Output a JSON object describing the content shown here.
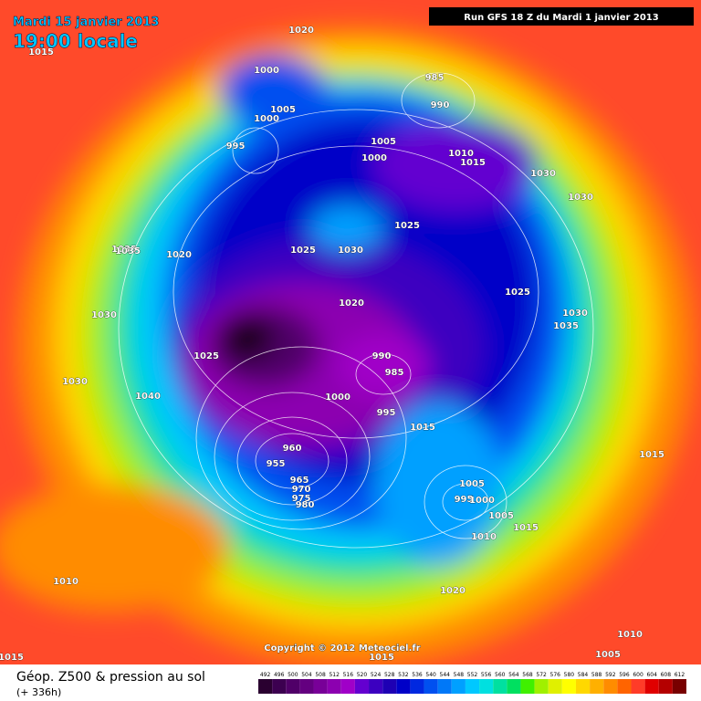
{
  "header": {
    "date": "Mardi 15 janvier 2013",
    "time": "19:00 locale",
    "run": "Run GFS 18 Z du Mardi 1 janvier 2013"
  },
  "copyright": "Copyright © 2012 Meteociel.fr",
  "footer": {
    "title": "Géop. Z500 & pression au sol",
    "subtitle": "(+ 336h)"
  },
  "colorbar": {
    "ticks": [
      492,
      496,
      500,
      504,
      508,
      512,
      516,
      520,
      524,
      528,
      532,
      536,
      540,
      544,
      548,
      552,
      556,
      560,
      564,
      568,
      572,
      576,
      580,
      584,
      588,
      592,
      596,
      600,
      604,
      608,
      612
    ],
    "colors": [
      "#2a0030",
      "#3c0050",
      "#500068",
      "#640080",
      "#780098",
      "#8c00b0",
      "#a000c8",
      "#6400d0",
      "#3c00c0",
      "#1e00b4",
      "#0000c8",
      "#0028e0",
      "#0050f0",
      "#0078f8",
      "#00a0ff",
      "#00c8ff",
      "#00e0e0",
      "#00e0a0",
      "#00e060",
      "#40f000",
      "#a0f000",
      "#e0f000",
      "#ffff00",
      "#ffd800",
      "#ffb000",
      "#ff8c00",
      "#ff6400",
      "#ff3c28",
      "#e00000",
      "#b40000",
      "#780000"
    ]
  },
  "isobar_labels": [
    1020,
    1015,
    1000,
    1005,
    1000,
    995,
    1005,
    1000,
    1010,
    1015,
    1030,
    1030,
    1035,
    1020,
    1025,
    1030,
    1025,
    1020,
    1025,
    990,
    985,
    1000,
    995,
    960,
    955,
    965,
    970,
    975,
    980,
    1040,
    1030,
    1035,
    1030,
    1015,
    1005,
    995,
    1000,
    1010,
    1020,
    1015,
    1010,
    1010,
    1005,
    1015,
    985,
    990,
    1025,
    1035,
    1030,
    1015,
    1005,
    1015
  ]
}
